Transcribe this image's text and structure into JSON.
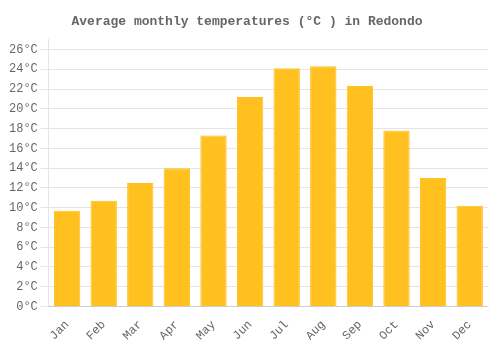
{
  "chart_data": {
    "type": "bar",
    "title": "Average monthly temperatures (°C ) in Redondo",
    "categories": [
      "Jan",
      "Feb",
      "Mar",
      "Apr",
      "May",
      "Jun",
      "Jul",
      "Aug",
      "Sep",
      "Oct",
      "Nov",
      "Dec"
    ],
    "values": [
      9.7,
      10.7,
      12.5,
      14.0,
      17.3,
      21.2,
      24.1,
      24.3,
      22.3,
      17.8,
      13.0,
      10.2
    ],
    "color": "#FFC020",
    "ylim": [
      0,
      27
    ],
    "yticks": [
      {
        "value": 0,
        "label": "0°C"
      },
      {
        "value": 2,
        "label": "2°C"
      },
      {
        "value": 4,
        "label": "4°C"
      },
      {
        "value": 6,
        "label": "6°C"
      },
      {
        "value": 8,
        "label": "8°C"
      },
      {
        "value": 10,
        "label": "10°C"
      },
      {
        "value": 12,
        "label": "12°C"
      },
      {
        "value": 14,
        "label": "14°C"
      },
      {
        "value": 16,
        "label": "16°C"
      },
      {
        "value": 18,
        "label": "18°C"
      },
      {
        "value": 20,
        "label": "20°C"
      },
      {
        "value": 22,
        "label": "22°C"
      },
      {
        "value": 24,
        "label": "24°C"
      },
      {
        "value": 26,
        "label": "26°C"
      }
    ],
    "grid": true
  }
}
